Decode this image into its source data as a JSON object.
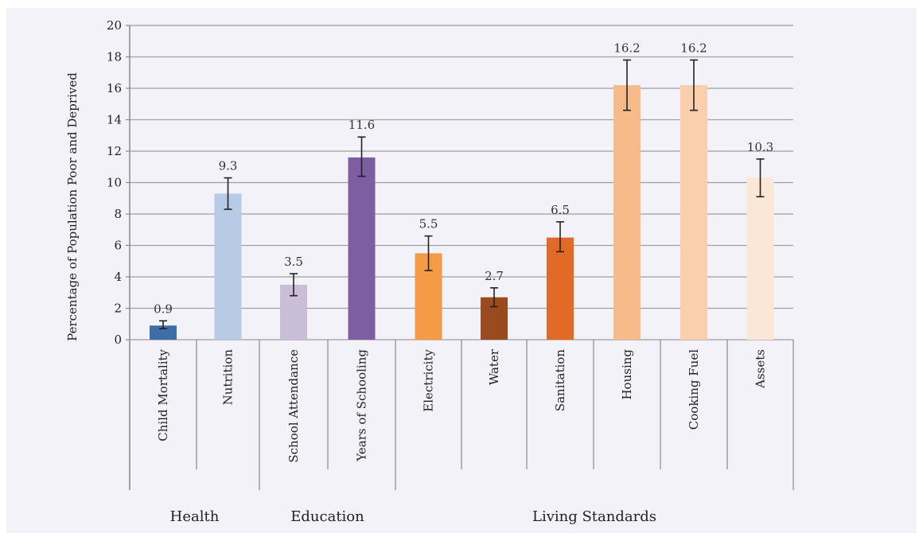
{
  "chart_data": {
    "type": "bar",
    "ylabel": "Percentage of Population Poor and Deprived",
    "ylim": [
      0,
      20
    ],
    "yticks": [
      0,
      2,
      4,
      6,
      8,
      10,
      12,
      14,
      16,
      18,
      20
    ],
    "grid": true,
    "categories": [
      "Child Mortality",
      "Nutrition",
      "School Attendance",
      "Years of Schooling",
      "Electricity",
      "Water",
      "Sanitation",
      "Housing",
      "Cooking Fuel",
      "Assets"
    ],
    "values": [
      0.9,
      9.3,
      3.5,
      11.6,
      5.5,
      2.7,
      6.5,
      16.2,
      16.2,
      10.3
    ],
    "value_labels": [
      "0.9",
      "9.3",
      "3.5",
      "11.6",
      "5.5",
      "2.7",
      "6.5",
      "16.2",
      "16.2",
      "10.3"
    ],
    "error_low": [
      0.7,
      8.3,
      2.8,
      10.4,
      4.4,
      2.1,
      5.6,
      14.6,
      14.6,
      9.1
    ],
    "error_high": [
      1.2,
      10.3,
      4.2,
      12.9,
      6.6,
      3.3,
      7.5,
      17.8,
      17.8,
      11.5
    ],
    "colors": [
      "#3e6ea8",
      "#b8cbe6",
      "#c9bdd8",
      "#7d5ea3",
      "#f59a45",
      "#9a4a1f",
      "#e06a26",
      "#f7bb8a",
      "#fbcfad",
      "#fbe7d6"
    ],
    "groups": [
      {
        "label": "Health",
        "start": 0,
        "end": 1
      },
      {
        "label": "Education",
        "start": 2,
        "end": 3
      },
      {
        "label": "Living Standards",
        "start": 4,
        "end": 9
      }
    ]
  }
}
